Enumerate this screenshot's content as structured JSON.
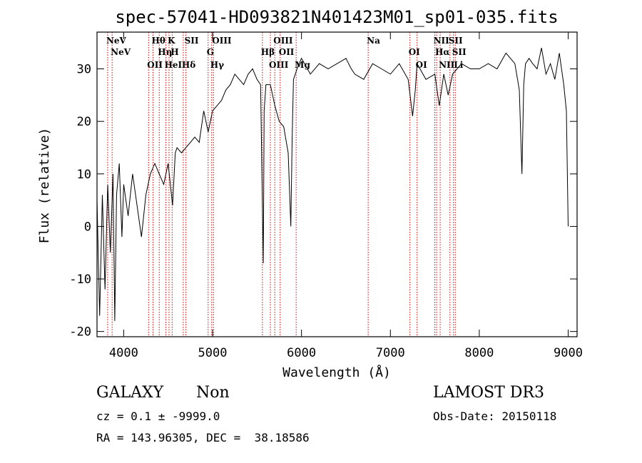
{
  "footer": {
    "class_label": "GALAXY",
    "subclass_label": "Non",
    "survey": "LAMOST DR3",
    "cz": "cz = 0.1 ± -9999.0",
    "obs_date": "Obs-Date: 20150118",
    "radec": "RA = 143.96305, DEC =  38.18586"
  },
  "chart_data": {
    "type": "line",
    "title": "spec-57041-HD093821N401423M01_sp01-035.fits",
    "xlabel": "Wavelength (Å)",
    "ylabel": "Flux (relative)",
    "xlim": [
      3700,
      9100
    ],
    "ylim": [
      -21,
      37
    ],
    "xticks": [
      4000,
      5000,
      6000,
      7000,
      8000,
      9000
    ],
    "yticks": [
      -20,
      -10,
      0,
      10,
      20,
      30
    ],
    "line_color": "#000000",
    "marker_color": "#cc0000",
    "series": [
      {
        "name": "flux",
        "x": [
          3700,
          3730,
          3760,
          3790,
          3820,
          3850,
          3880,
          3900,
          3920,
          3950,
          3980,
          4000,
          4050,
          4100,
          4150,
          4200,
          4250,
          4300,
          4350,
          4400,
          4450,
          4500,
          4550,
          4580,
          4600,
          4650,
          4700,
          4750,
          4800,
          4850,
          4900,
          4950,
          5000,
          5050,
          5100,
          5150,
          5200,
          5250,
          5300,
          5350,
          5400,
          5450,
          5500,
          5540,
          5570,
          5580,
          5600,
          5650,
          5700,
          5750,
          5800,
          5850,
          5880,
          5895,
          5910,
          5950,
          6000,
          6100,
          6200,
          6300,
          6400,
          6500,
          6560,
          6600,
          6700,
          6800,
          6900,
          7000,
          7100,
          7200,
          7250,
          7280,
          7300,
          7400,
          7500,
          7550,
          7600,
          7650,
          7700,
          7800,
          7900,
          8000,
          8100,
          8200,
          8300,
          8400,
          8450,
          8480,
          8500,
          8520,
          8560,
          8600,
          8650,
          8700,
          8750,
          8800,
          8850,
          8900,
          8950,
          8980,
          9000
        ],
        "y": [
          5,
          -17,
          6,
          -12,
          8,
          -5,
          10,
          -18,
          6,
          12,
          -2,
          8,
          2,
          10,
          4,
          -2,
          6,
          10,
          12,
          10,
          8,
          12,
          4,
          14,
          15,
          14,
          15,
          16,
          17,
          16,
          22,
          18,
          22,
          23,
          24,
          26,
          27,
          29,
          28,
          27,
          29,
          30,
          28,
          27,
          -7,
          22,
          27,
          27,
          23,
          20,
          19,
          14,
          0,
          17,
          28,
          30,
          32,
          29,
          31,
          30,
          31,
          32,
          30,
          29,
          28,
          31,
          30,
          29,
          31,
          28,
          21,
          26,
          31,
          28,
          29,
          23,
          29,
          25,
          29,
          31,
          30,
          30,
          31,
          30,
          33,
          31,
          26,
          10,
          27,
          31,
          32,
          31,
          30,
          34,
          29,
          31,
          28,
          33,
          27,
          22,
          0
        ]
      }
    ],
    "markers": [
      {
        "wave": 3820,
        "label": "NeV"
      },
      {
        "wave": 3870,
        "label": "NeV"
      },
      {
        "wave": 4280,
        "label": "OII"
      },
      {
        "wave": 4330,
        "label": "Hθ"
      },
      {
        "wave": 4400,
        "label": "Hη"
      },
      {
        "wave": 4475,
        "label": "HeI"
      },
      {
        "wave": 4510,
        "label": "K"
      },
      {
        "wave": 4545,
        "label": "H"
      },
      {
        "wave": 4670,
        "label": "Hδ"
      },
      {
        "wave": 4700,
        "label": "SII"
      },
      {
        "wave": 4950,
        "label": "G"
      },
      {
        "wave": 4990,
        "label": "Hγ"
      },
      {
        "wave": 5010,
        "label": "OIII"
      },
      {
        "wave": 5560,
        "label": "Hβ"
      },
      {
        "wave": 5650,
        "label": "OIII"
      },
      {
        "wave": 5700,
        "label": "OIII"
      },
      {
        "wave": 5760,
        "label": "OII"
      },
      {
        "wave": 5940,
        "label": "Mg"
      },
      {
        "wave": 6750,
        "label": "Na"
      },
      {
        "wave": 7220,
        "label": "OI"
      },
      {
        "wave": 7300,
        "label": "OI"
      },
      {
        "wave": 7500,
        "label": "NII"
      },
      {
        "wave": 7520,
        "label": "Hα"
      },
      {
        "wave": 7560,
        "label": "NII"
      },
      {
        "wave": 7670,
        "label": "SII"
      },
      {
        "wave": 7710,
        "label": "SII"
      },
      {
        "wave": 7730,
        "label": "Li"
      }
    ]
  }
}
